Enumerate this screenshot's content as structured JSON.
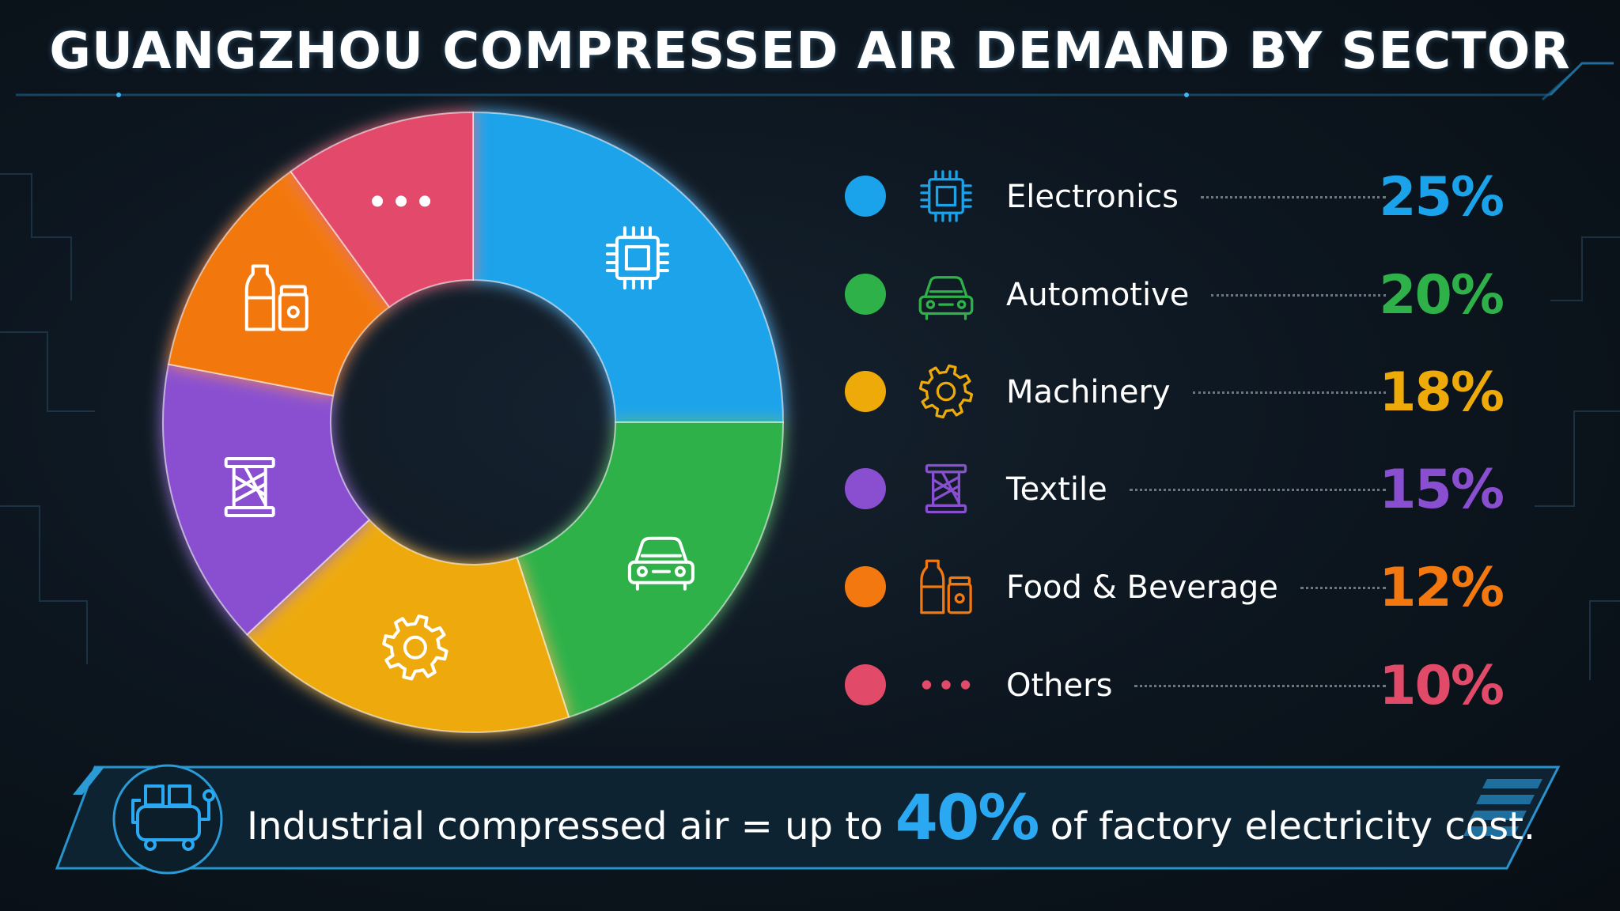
{
  "title": "GUANGZHOU COMPRESSED AIR DEMAND BY SECTOR",
  "chart_data": {
    "type": "pie",
    "title": "GUANGZHOU COMPRESSED AIR DEMAND BY SECTOR",
    "categories": [
      "Electronics",
      "Automotive",
      "Machinery",
      "Textile",
      "Food & Beverage",
      "Others"
    ],
    "values": [
      25,
      20,
      18,
      15,
      12,
      10
    ],
    "value_labels": [
      "25%",
      "20%",
      "18%",
      "15%",
      "12%",
      "10%"
    ],
    "colors": [
      "#1aa3ea",
      "#2fb14a",
      "#eeaa08",
      "#8a4fd0",
      "#f2780f",
      "#e24a6a"
    ],
    "icons": [
      "microchip-icon",
      "car-icon",
      "gear-icon",
      "spool-icon",
      "bottle-jar-icon",
      "ellipsis-icon"
    ],
    "style": "donut",
    "legend_placement": "right"
  },
  "banner": {
    "prefix": "Industrial compressed air = up to",
    "highlight": "40%",
    "suffix": "of factory electricity cost.",
    "icon": "air-compressor-icon",
    "accent_color": "#2aa8f2"
  }
}
